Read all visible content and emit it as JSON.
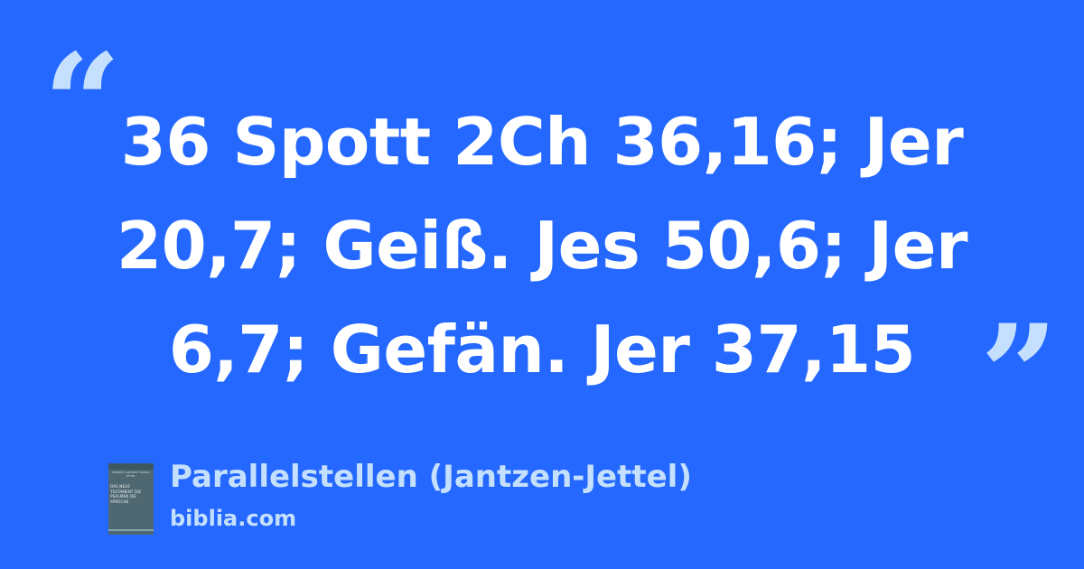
{
  "quote": {
    "open_mark": "“",
    "text": "36 Spott 2Ch 36,16; Jer 20,7; Geiß. Jes 50,6; Jer 6,7; Gefän. Jer 37,15",
    "close_mark": "”"
  },
  "source": {
    "title": "Parallelstellen (Jantzen-Jettel)",
    "site": "biblia.com",
    "cover": {
      "authors": "HERBERT JANTZEN THOMAS JETTEL",
      "title": "DAS NEUE TESTAMENT DIE PSALMEN DIE SPRÜCHE"
    }
  },
  "colors": {
    "background": "#2468ff",
    "accent": "#c5e0ff",
    "text": "#ffffff"
  }
}
